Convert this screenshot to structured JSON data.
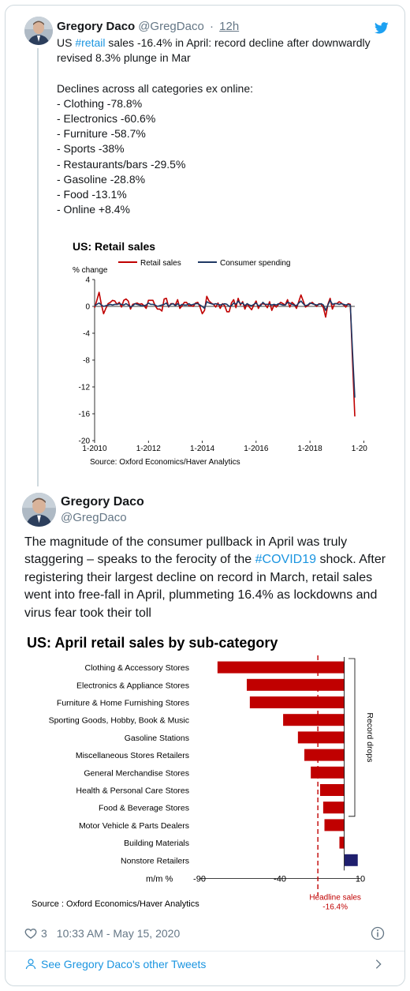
{
  "parent_tweet": {
    "author_name": "Gregory Daco",
    "handle": "@GregDaco",
    "separator": "·",
    "time": "12h",
    "text_before_hashtag": "US ",
    "hashtag": "#retail",
    "text_after_hashtag": " sales -16.4% in April: record decline after downwardly revised 8.3% plunge in Mar\n\nDeclines across all categories ex online:\n- Clothing -78.8%\n- Electronics -60.6%\n- Furniture -58.7%\n- Sports -38%\n- Restaurants/bars -29.5%\n- Gasoline -28.8%\n- Food -13.1%\n- Online +8.4%"
  },
  "main_tweet": {
    "author_name": "Gregory Daco",
    "handle": "@GregDaco",
    "text_before_hashtag": "The magnitude of the consumer pullback in April was truly staggering – speaks to the ferocity of the ",
    "hashtag": "#COVID19",
    "text_after_hashtag": " shock. After registering their largest decline on record in March, retail sales went into free-fall in April, plummeting 16.4% as lockdowns and virus fear took their toll",
    "likes": "3",
    "timestamp": "10:33 AM - May 15, 2020",
    "see_more": "See Gregory Daco's other Tweets"
  },
  "colors": {
    "link": "#1b95e0",
    "retail": "#c00000",
    "spending": "#1f3864",
    "muted": "#657786"
  },
  "icons": {
    "bird": "twitter-bird-icon",
    "heart": "heart-icon",
    "info": "info-icon",
    "person": "person-icon",
    "chevron": "chevron-right-icon"
  },
  "chart_data": [
    {
      "type": "line",
      "title": "US: Retail sales",
      "ylabel": "% change",
      "ylim": [
        -20,
        4
      ],
      "yticks": [
        4,
        0,
        -4,
        -8,
        -12,
        -16,
        -20
      ],
      "xticks": [
        "1-2010",
        "1-2012",
        "1-2014",
        "1-2016",
        "1-2018",
        "1-2020"
      ],
      "x_start": "2010-01",
      "x_end": "2020-04",
      "source": "Source: Oxford Economics/Haver Analytics",
      "series": [
        {
          "name": "Retail sales",
          "color": "#c00000",
          "values": [
            -0.2,
            0.9,
            2.1,
            0.3,
            -1.1,
            -0.3,
            0.4,
            0.6,
            0.9,
            0.8,
            0.3,
            0.6,
            -0.1,
            0.9,
            1.1,
            0.8,
            -0.4,
            0.3,
            0.4,
            0.5,
            0.3,
            0.4,
            0.1,
            -0.3,
            0.9,
            0.9,
            0.9,
            0.1,
            -0.4,
            -0.4,
            -0.7,
            1.1,
            1.2,
            -0.1,
            0.4,
            0.4,
            0.2,
            1.0,
            -0.3,
            0.1,
            0.6,
            0.6,
            0.1,
            0.1,
            0.0,
            0.5,
            0.6,
            -0.1,
            -1.1,
            -0.6,
            1.5,
            0.8,
            0.5,
            0.3,
            -0.1,
            0.5,
            -0.3,
            0.4,
            0.1,
            -0.8,
            -0.8,
            0.5,
            1.0,
            -0.2,
            1.2,
            0.2,
            0.7,
            -0.4,
            0.4,
            -0.1,
            -0.5,
            0.2,
            0.8,
            -0.3,
            0.3,
            0.4,
            0.3,
            -0.2,
            0.7,
            -0.6,
            0.2,
            -0.1,
            0.3,
            0.6,
            0.4,
            0.2,
            1.0,
            -0.1,
            0.6,
            0.3,
            -0.3,
            0.7,
            1.7,
            0.8,
            -0.1,
            0.1,
            0.4,
            0.6,
            0.3,
            0.0,
            0.4,
            0.3,
            -0.2,
            -1.6,
            0.3,
            1.2,
            -0.4,
            0.4,
            0.4,
            0.7,
            0.5,
            0.2,
            -0.1,
            0.4,
            0.3,
            -8.3,
            -16.4
          ]
        },
        {
          "name": "Consumer spending",
          "color": "#1f3864",
          "values": [
            0.1,
            0.3,
            0.5,
            0.2,
            0.0,
            0.1,
            0.2,
            0.3,
            0.2,
            0.3,
            0.3,
            0.4,
            0.3,
            0.2,
            0.4,
            0.2,
            -0.1,
            0.1,
            0.4,
            0.3,
            0.2,
            0.1,
            0.1,
            0.2,
            0.5,
            0.3,
            0.3,
            0.2,
            0.0,
            0.1,
            0.2,
            0.3,
            0.5,
            0.0,
            0.3,
            0.4,
            0.1,
            0.4,
            0.1,
            0.3,
            0.2,
            0.2,
            0.4,
            0.2,
            0.3,
            0.4,
            0.4,
            0.2,
            0.0,
            -0.3,
            0.7,
            0.5,
            0.4,
            0.3,
            0.4,
            0.3,
            0.2,
            0.3,
            0.4,
            0.3,
            0.0,
            0.1,
            0.5,
            0.3,
            0.8,
            0.4,
            0.5,
            0.1,
            0.4,
            0.2,
            0.1,
            0.3,
            0.5,
            0.1,
            0.1,
            0.6,
            0.3,
            0.3,
            0.3,
            0.2,
            0.3,
            0.2,
            0.4,
            0.3,
            0.2,
            0.2,
            0.6,
            0.5,
            0.3,
            0.2,
            0.1,
            0.5,
            0.8,
            0.4,
            0.1,
            0.2,
            0.5,
            0.4,
            0.3,
            0.2,
            0.3,
            0.4,
            0.2,
            -0.6,
            0.2,
            0.9,
            0.3,
            0.4,
            0.4,
            0.3,
            0.4,
            0.3,
            0.2,
            0.3,
            0.2,
            -6.9,
            -13.6
          ]
        }
      ]
    },
    {
      "type": "bar",
      "orientation": "horizontal",
      "title": "US: April retail sales by sub-category",
      "xlabel": "m/m %",
      "xlim": [
        -90,
        10
      ],
      "xticks": [
        -90,
        -40,
        10
      ],
      "categories": [
        "Clothing & Accessory Stores",
        "Electronics & Appliance Stores",
        "Furniture & Home Furnishing Stores",
        "Sporting Goods, Hobby, Book & Music",
        "Gasoline Stations",
        "Miscellaneous Stores Retailers",
        "General Merchandise Stores",
        "Health & Personal Care Stores",
        "Food & Beverage Stores",
        "Motor Vehicle & Parts Dealers",
        "Building Materials",
        "Nonstore Retailers"
      ],
      "values": [
        -78.8,
        -60.6,
        -58.7,
        -38.0,
        -28.8,
        -24.8,
        -20.8,
        -15.0,
        -13.1,
        -12.3,
        -3.0,
        8.4
      ],
      "negative_color": "#c00000",
      "positive_color": "#1f1f6e",
      "reference_line": {
        "value": -16.4,
        "label_line1": "Headline sales",
        "label_line2": "-16.4%"
      },
      "bracket_label": "Record drops",
      "source": "Source : Oxford Economics/Haver Analytics"
    }
  ]
}
